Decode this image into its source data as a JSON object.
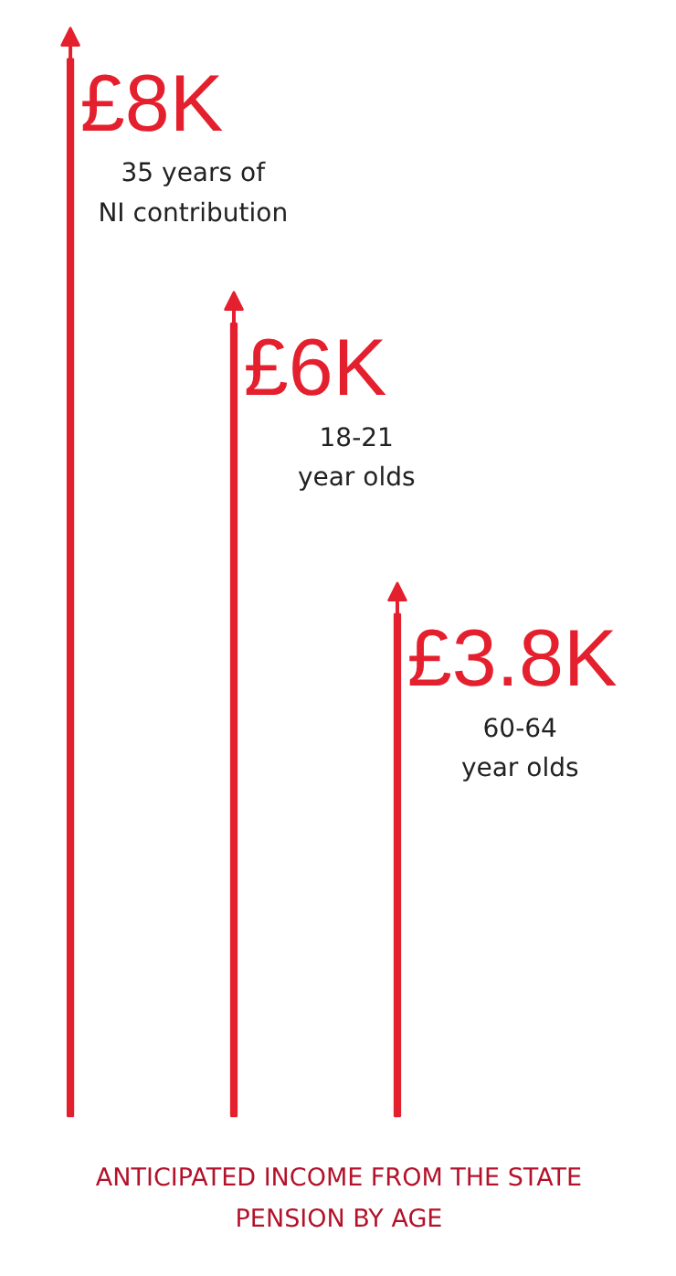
{
  "chart_data": {
    "type": "bar",
    "title": "ANTICIPATED INCOME FROM THE STATE\nPENSION BY AGE",
    "categories": [
      null,
      null,
      null
    ],
    "values": [
      8000,
      6000,
      3800
    ],
    "value_labels": [
      "£8K",
      "£6K",
      "£3.8K"
    ],
    "annotations": [
      "35 years of\nNI contribution",
      "18-21\nyear olds",
      "60-64\nyear olds"
    ],
    "color": "#e5202e",
    "tick_labels": false,
    "grid": false
  }
}
